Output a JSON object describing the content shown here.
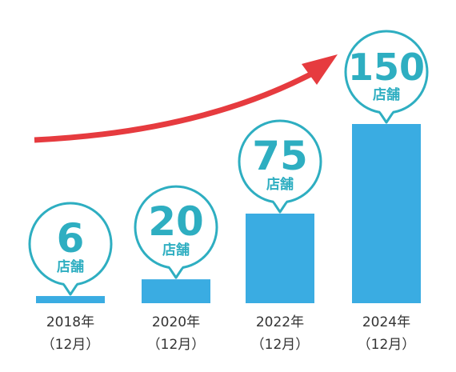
{
  "chart_data": {
    "type": "bar",
    "categories": [
      {
        "year": "2018年",
        "month": "（12月）"
      },
      {
        "year": "2020年",
        "month": "（12月）"
      },
      {
        "year": "2022年",
        "month": "（12月）"
      },
      {
        "year": "2024年",
        "month": "（12月）"
      }
    ],
    "values": [
      6,
      20,
      75,
      150
    ],
    "value_labels": [
      "6",
      "20",
      "75",
      "150"
    ],
    "unit": "店舗",
    "title": "",
    "xlabel": "",
    "ylabel": "",
    "ylim": [
      0,
      150
    ],
    "grid": false,
    "legend": "none",
    "trend_arrow": true
  },
  "colors": {
    "bar": "#3aace2",
    "bubble_stroke": "#2eaec1",
    "bubble_fill": "#ffffff",
    "label": "#2eaec1",
    "arrow": "#e63b3f",
    "axis_text": "#333333"
  }
}
